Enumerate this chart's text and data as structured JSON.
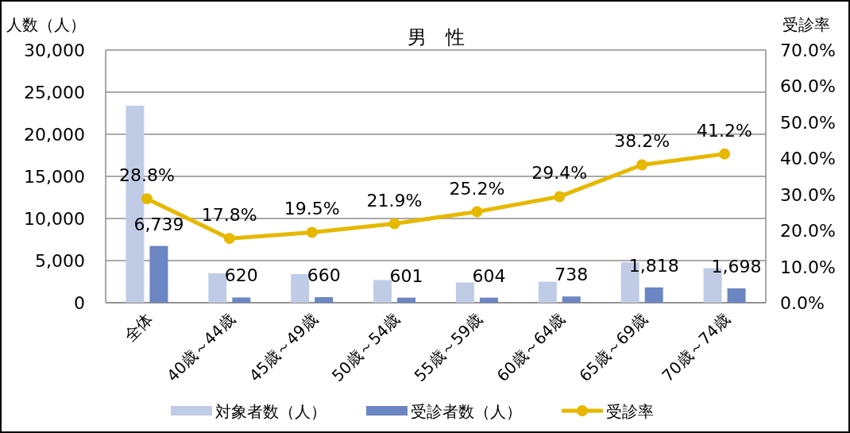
{
  "chart_data": {
    "type": "bar",
    "title": "男　性",
    "ylabel": "人数（人）",
    "y2label": "受診率",
    "categories": [
      "全体",
      "40歳～44歳",
      "45歳～49歳",
      "50歳～54歳",
      "55歳～59歳",
      "60歳～64歳",
      "65歳～69歳",
      "70歳～74歳"
    ],
    "series": [
      {
        "name": "対象者数（人）",
        "color": "#c0cce6",
        "values": [
          23400,
          3500,
          3400,
          2700,
          2400,
          2500,
          4800,
          4100
        ]
      },
      {
        "name": "受診者数（人）",
        "color": "#6b86c2",
        "values": [
          6739,
          620,
          660,
          601,
          604,
          738,
          1818,
          1698
        ],
        "value_labels": [
          "6,739",
          "620",
          "660",
          "601",
          "604",
          "738",
          "1,818",
          "1,698"
        ]
      },
      {
        "name": "受診率",
        "type": "line",
        "axis": "y2",
        "color": "#e6b800",
        "marker": "circle",
        "values": [
          28.8,
          17.8,
          19.5,
          21.9,
          25.2,
          29.4,
          38.2,
          41.2
        ],
        "value_labels": [
          "28.8%",
          "17.8%",
          "19.5%",
          "21.9%",
          "25.2%",
          "29.4%",
          "38.2%",
          "41.2%"
        ]
      }
    ],
    "ylim": [
      0,
      30000
    ],
    "yticks": [
      {
        "value": 0,
        "label": "0"
      },
      {
        "value": 5000,
        "label": "5,000"
      },
      {
        "value": 10000,
        "label": "10,000"
      },
      {
        "value": 15000,
        "label": "15,000"
      },
      {
        "value": 20000,
        "label": "20,000"
      },
      {
        "value": 25000,
        "label": "25,000"
      },
      {
        "value": 30000,
        "label": "30,000"
      }
    ],
    "y2lim": [
      0,
      70
    ],
    "y2ticks": [
      {
        "value": 0,
        "label": "0.0%"
      },
      {
        "value": 10,
        "label": "10.0%"
      },
      {
        "value": 20,
        "label": "20.0%"
      },
      {
        "value": 30,
        "label": "30.0%"
      },
      {
        "value": 40,
        "label": "40.0%"
      },
      {
        "value": 50,
        "label": "50.0%"
      },
      {
        "value": 60,
        "label": "60.0%"
      },
      {
        "value": 70,
        "label": "70.0%"
      }
    ],
    "grid": "y",
    "legend": "bottom"
  }
}
